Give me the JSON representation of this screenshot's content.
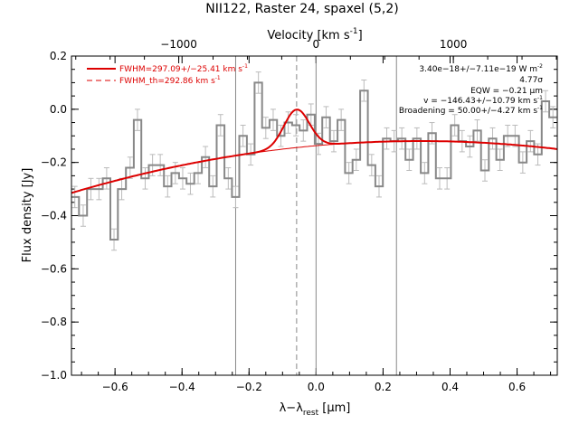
{
  "chart_data": {
    "type": "line",
    "title": "NII122, Raster 24, spaxel (5,2)",
    "xlabel": "λ−λ",
    "xlabel_sub": "rest",
    "xlabel_unit": " [μm]",
    "ylabel": "Flux density [Jy]",
    "top_axis_label": "Velocity [km s",
    "top_axis_label_sup": "-1",
    "top_axis_label_end": "]",
    "xlim": [
      -0.73,
      0.72
    ],
    "ylim": [
      -1.0,
      0.2
    ],
    "x_ticks": [
      -0.6,
      -0.4,
      -0.2,
      0.0,
      0.2,
      0.4,
      0.6
    ],
    "x_tick_labels": [
      "−0.6",
      "−0.4",
      "−0.2",
      "0.0",
      "0.2",
      "0.4",
      "0.6"
    ],
    "y_ticks": [
      -1.0,
      -0.8,
      -0.6,
      -0.4,
      -0.2,
      0.0,
      0.2
    ],
    "y_tick_labels": [
      "−1.0",
      "−0.8",
      "−0.6",
      "−0.4",
      "−0.2",
      "0.0",
      "0.2"
    ],
    "top_ticks_velocity": [
      -1000,
      0,
      1000
    ],
    "top_tick_labels": [
      "−1000",
      "0",
      "1000"
    ],
    "velocity_per_micron": 2440,
    "grid": false,
    "vertical_lines_x": [
      -0.24,
      0.0,
      0.24
    ],
    "dashed_line_x": -0.058,
    "legend": {
      "placement": "top-left",
      "entries": [
        {
          "label": "FWHM=297.09+/−25.41 km s",
          "sup": "-1",
          "style": "solid"
        },
        {
          "label": "FWHM_th=292.86 km s",
          "sup": "-1",
          "style": "dashed"
        }
      ]
    },
    "annotations": {
      "flux": "3.40e−18+/−7.11e−19 W m",
      "flux_sup": "-2",
      "sigma": "4.77σ",
      "eqw": "EQW = −0.21 μm",
      "velocity": "v = −146.43+/−10.79 km s",
      "velocity_sup": "-1",
      "broadening": "Broadening = 50.00+/−4.27 km s",
      "broadening_sup": "-1"
    },
    "series": [
      {
        "name": "spectrum",
        "style": "steps",
        "color": "#888888",
        "x": [
          -0.72,
          -0.695,
          -0.672,
          -0.648,
          -0.625,
          -0.603,
          -0.58,
          -0.555,
          -0.533,
          -0.51,
          -0.488,
          -0.465,
          -0.443,
          -0.42,
          -0.398,
          -0.375,
          -0.352,
          -0.33,
          -0.308,
          -0.285,
          -0.262,
          -0.24,
          -0.218,
          -0.195,
          -0.172,
          -0.15,
          -0.128,
          -0.105,
          -0.083,
          -0.06,
          -0.038,
          -0.015,
          0.007,
          0.03,
          0.053,
          0.075,
          0.098,
          0.12,
          0.143,
          0.166,
          0.188,
          0.211,
          0.233,
          0.256,
          0.278,
          0.301,
          0.324,
          0.346,
          0.369,
          0.391,
          0.414,
          0.436,
          0.459,
          0.481,
          0.504,
          0.527,
          0.549,
          0.572,
          0.594,
          0.617,
          0.64,
          0.662,
          0.685,
          0.707
        ],
        "y": [
          -0.33,
          -0.4,
          -0.3,
          -0.3,
          -0.26,
          -0.49,
          -0.3,
          -0.22,
          -0.04,
          -0.26,
          -0.21,
          -0.21,
          -0.29,
          -0.24,
          -0.26,
          -0.28,
          -0.24,
          -0.18,
          -0.29,
          -0.06,
          -0.26,
          -0.33,
          -0.1,
          -0.17,
          0.1,
          -0.07,
          -0.04,
          -0.1,
          -0.05,
          -0.06,
          -0.08,
          -0.02,
          -0.13,
          -0.03,
          -0.12,
          -0.04,
          -0.24,
          -0.19,
          0.07,
          -0.21,
          -0.29,
          -0.11,
          -0.12,
          -0.11,
          -0.19,
          -0.11,
          -0.24,
          -0.09,
          -0.26,
          -0.26,
          -0.06,
          -0.12,
          -0.14,
          -0.08,
          -0.23,
          -0.11,
          -0.19,
          -0.1,
          -0.1,
          -0.2,
          -0.12,
          -0.17,
          0.03,
          -0.03
        ],
        "err": 0.04
      },
      {
        "name": "fit",
        "style": "line",
        "color": "#dd0000",
        "continuum": {
          "a": -0.137,
          "b": 0.112,
          "c": -0.18
        },
        "line": {
          "center": -0.058,
          "sigma": 0.038,
          "amplitude": 0.143
        }
      }
    ]
  }
}
